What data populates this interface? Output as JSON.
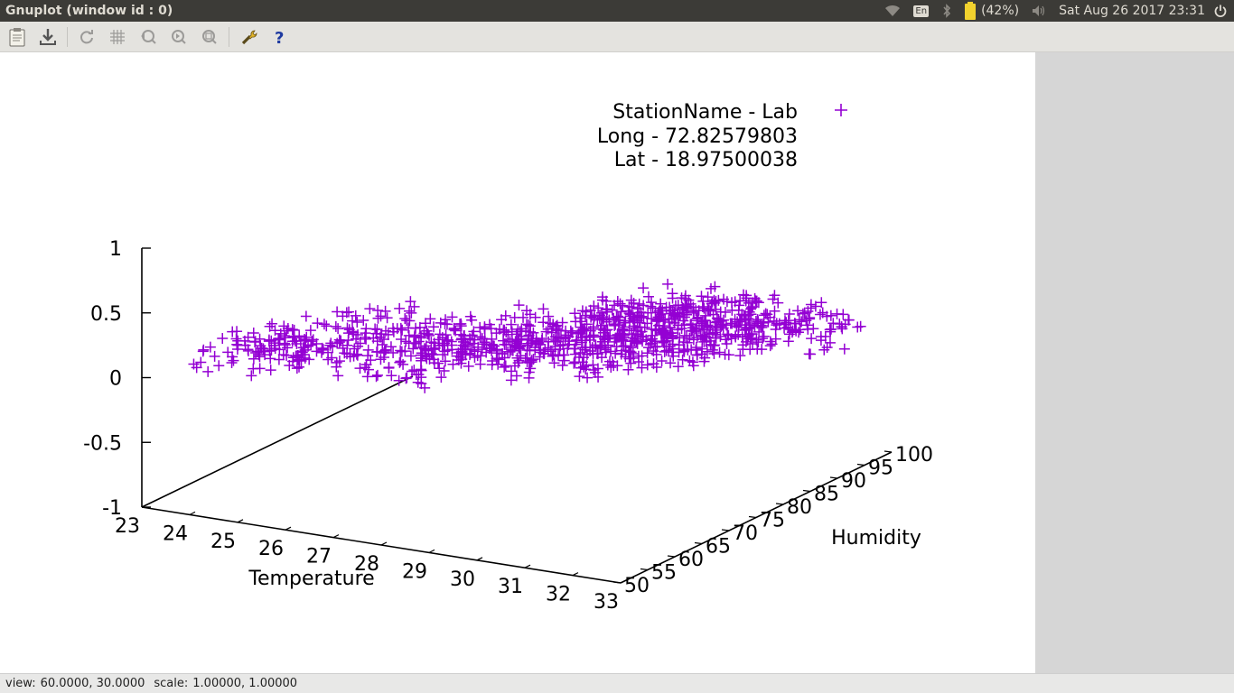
{
  "window": {
    "title": "Gnuplot (window id : 0)"
  },
  "indicators": {
    "keyboard": "En",
    "battery": "(42%)",
    "datetime": "Sat Aug 26 2017 23:31",
    "icons": [
      "wifi-icon",
      "keyboard-layout-icon",
      "bluetooth-icon",
      "battery-icon",
      "volume-icon",
      "power-icon"
    ]
  },
  "toolbar": {
    "icons": [
      "clipboard-icon",
      "export-icon",
      "replot-icon",
      "grid-icon",
      "previous-zoom-icon",
      "next-zoom-icon",
      "autoscale-icon",
      "options-icon",
      "help-icon"
    ]
  },
  "plot": {
    "legend": {
      "title": "StationName - Lab",
      "long": "Long - 72.82579803",
      "lat": "Lat - 18.97500038"
    },
    "marker_color": "#9400d3"
  },
  "status": {
    "view_label": "view:",
    "view_value": "60.0000,  30.0000",
    "scale_label": "scale:",
    "scale_value": "1.00000,  1.00000"
  },
  "chart_data": {
    "type": "scatter",
    "title": "",
    "xlabel": "Temperature",
    "ylabel": "Humidity",
    "zlabel": "",
    "xlim": [
      23,
      33
    ],
    "ylim": [
      50,
      100
    ],
    "zlim": [
      -1,
      1
    ],
    "x_ticks": [
      "23",
      "24",
      "25",
      "26",
      "27",
      "28",
      "29",
      "30",
      "31",
      "32",
      "33"
    ],
    "y_ticks": [
      "50",
      "55",
      "60",
      "65",
      "70",
      "75",
      "80",
      "85",
      "90",
      "95",
      "100"
    ],
    "z_ticks": [
      "-1",
      "-0.5",
      "0",
      "0.5",
      "1"
    ],
    "view": [
      60,
      30
    ],
    "legend": "top-right",
    "series": [
      {
        "name": "StationName - Lab",
        "marker": "+",
        "color": "#9400d3",
        "z": 0,
        "regions": [
          {
            "x": [
              23.4,
              25.2
            ],
            "y": [
              60,
              72
            ]
          },
          {
            "x": [
              23.0,
              24.5
            ],
            "y": [
              58,
              66
            ]
          },
          {
            "x": [
              24.2,
              27.5
            ],
            "y": [
              62,
              78
            ]
          },
          {
            "x": [
              25.0,
              28.8
            ],
            "y": [
              68,
              82
            ]
          },
          {
            "x": [
              26.8,
              30.2
            ],
            "y": [
              72,
              86
            ]
          },
          {
            "x": [
              27.8,
              31.0
            ],
            "y": [
              78,
              94
            ]
          },
          {
            "x": [
              28.0,
              29.8
            ],
            "y": [
              78,
              97
            ]
          },
          {
            "x": [
              28.5,
              31.8
            ],
            "y": [
              86,
              100
            ]
          },
          {
            "x": [
              29.5,
              32.8
            ],
            "y": [
              90,
              100
            ]
          },
          {
            "x": [
              30.0,
              31.6
            ],
            "y": [
              80,
              90
            ]
          }
        ]
      }
    ]
  }
}
